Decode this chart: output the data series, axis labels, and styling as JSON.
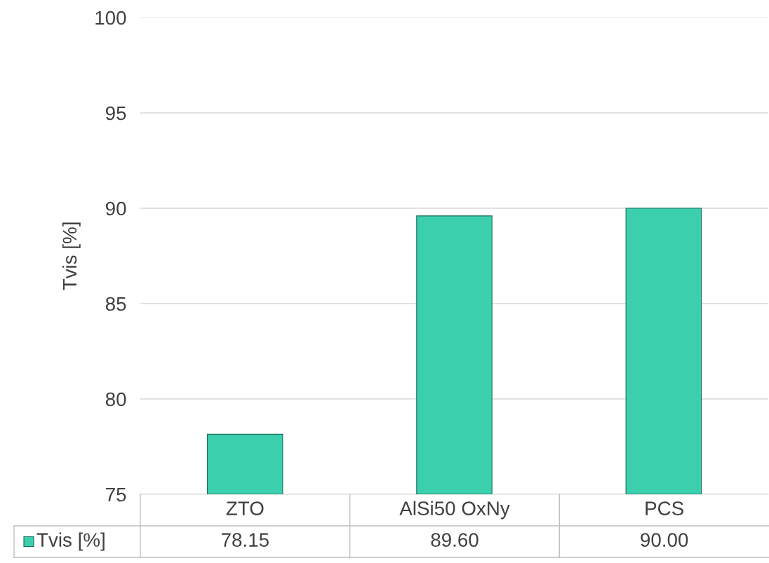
{
  "chart_data": {
    "type": "bar",
    "ylabel": "Tvis [%]",
    "categories": [
      "ZTO",
      "AlSi50 OxNy",
      "PCS"
    ],
    "series": [
      {
        "name": "Tvis [%]",
        "color": "#3ccfae",
        "values": [
          78.15,
          89.6,
          90.0
        ],
        "value_labels": [
          "78.15",
          "89.60",
          "90.00"
        ]
      }
    ],
    "ylim": [
      75,
      100
    ],
    "yticks": [
      75,
      80,
      85,
      90,
      95,
      100
    ],
    "grid": "y"
  }
}
